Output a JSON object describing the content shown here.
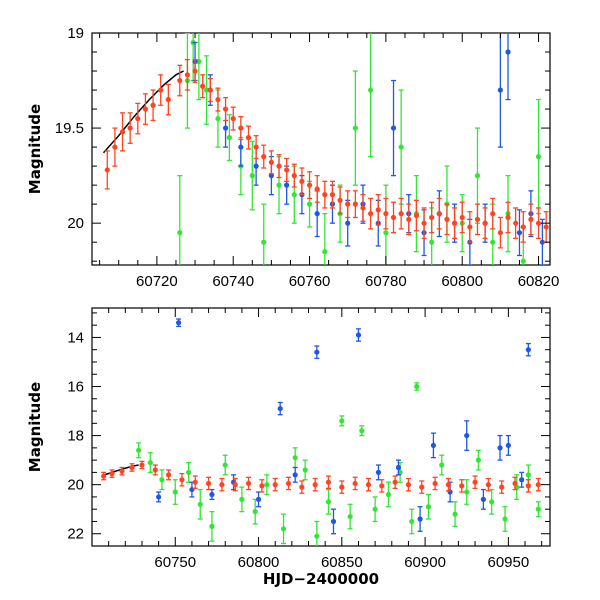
{
  "chart_data": [
    {
      "type": "scatter",
      "title": "",
      "xlabel": "",
      "ylabel": "Magnitude",
      "xlim": [
        60703,
        60823
      ],
      "ylim": [
        20.22,
        19.0
      ],
      "y_inverted": true,
      "xticks": [
        60720,
        60740,
        60760,
        60780,
        60800,
        60820
      ],
      "yticks": [
        19,
        19.5,
        20
      ],
      "x_minor_step": 5,
      "y_minor_step": 0.1,
      "grid": false,
      "model_curve": {
        "name": "model",
        "color": "#000000",
        "x": [
          60706,
          60710,
          60714,
          60718,
          60722,
          60725,
          60727
        ],
        "y": [
          19.63,
          19.54,
          19.44,
          19.35,
          19.27,
          19.22,
          19.2
        ]
      },
      "series": [
        {
          "name": "green",
          "color": "#33e633",
          "x": [
            60726,
            60728,
            60729.5,
            60731,
            60733,
            60736,
            60739,
            60742,
            60745,
            60748,
            60752,
            60756,
            60760,
            60764,
            60768,
            60772,
            60776,
            60780,
            60784,
            60788,
            60792,
            60796,
            60800,
            60804,
            60808,
            60812,
            60816,
            60820
          ],
          "y": [
            20.05,
            19.25,
            19.05,
            19.15,
            19.3,
            19.45,
            19.55,
            19.7,
            19.75,
            20.1,
            19.8,
            19.85,
            19.9,
            20.15,
            19.95,
            19.5,
            19.3,
            20.05,
            19.6,
            19.95,
            20.1,
            19.9,
            20.0,
            19.75,
            20.1,
            19.95,
            20.2,
            19.65
          ],
          "yerr": [
            0.3,
            0.25,
            0.2,
            0.2,
            0.18,
            0.15,
            0.12,
            0.15,
            0.18,
            0.2,
            0.15,
            0.15,
            0.12,
            0.2,
            0.15,
            0.3,
            0.35,
            0.25,
            0.3,
            0.2,
            0.18,
            0.2,
            0.15,
            0.25,
            0.2,
            0.2,
            0.18,
            0.3
          ]
        },
        {
          "name": "blue",
          "color": "#1f57e6",
          "x": [
            60730,
            60734,
            60738,
            60742,
            60746,
            60750,
            60754,
            60758,
            60762,
            60766,
            60770,
            60774,
            60778,
            60782,
            60786,
            60790,
            60794,
            60798,
            60802,
            60806,
            60810,
            60812,
            60815,
            60818,
            60821
          ],
          "y": [
            19.15,
            19.3,
            19.5,
            19.6,
            19.7,
            19.75,
            19.8,
            19.85,
            19.95,
            19.9,
            20.0,
            19.9,
            20.0,
            19.5,
            19.95,
            20.05,
            19.95,
            20.0,
            20.1,
            20.0,
            19.3,
            19.1,
            20.05,
            19.95,
            20.1
          ],
          "yerr": [
            0.1,
            0.08,
            0.1,
            0.1,
            0.1,
            0.1,
            0.1,
            0.1,
            0.12,
            0.1,
            0.12,
            0.1,
            0.12,
            0.25,
            0.1,
            0.12,
            0.12,
            0.1,
            0.12,
            0.1,
            0.3,
            0.25,
            0.12,
            0.12,
            0.12
          ]
        },
        {
          "name": "red",
          "color": "#ff4422",
          "x": [
            60707,
            60709,
            60711,
            60713,
            60715,
            60717,
            60719,
            60721,
            60723,
            60726,
            60728,
            60730,
            60732,
            60734,
            60736,
            60738,
            60740,
            60742,
            60744,
            60746,
            60748,
            60750,
            60752,
            60754,
            60756,
            60758,
            60760,
            60762,
            60764,
            60766,
            60768,
            60770,
            60772,
            60774,
            60776,
            60778,
            60780,
            60782,
            60784,
            60786,
            60788,
            60790,
            60792,
            60794,
            60796,
            60798,
            60800,
            60802,
            60804,
            60806,
            60808,
            60810,
            60812,
            60814,
            60816,
            60818,
            60820,
            60822
          ],
          "y": [
            19.72,
            19.6,
            19.52,
            19.5,
            19.45,
            19.4,
            19.38,
            19.3,
            19.35,
            19.25,
            19.22,
            19.2,
            19.28,
            19.3,
            19.35,
            19.4,
            19.45,
            19.5,
            19.55,
            19.6,
            19.65,
            19.68,
            19.7,
            19.72,
            19.75,
            19.78,
            19.8,
            19.82,
            19.85,
            19.85,
            19.88,
            19.9,
            19.9,
            19.92,
            19.95,
            19.93,
            19.95,
            19.97,
            19.95,
            19.98,
            19.96,
            20.0,
            19.97,
            19.95,
            19.98,
            20.0,
            19.97,
            20.02,
            19.98,
            20.0,
            19.95,
            20.05,
            19.97,
            20.0,
            20.02,
            19.98,
            20.0,
            20.02
          ],
          "yerr": [
            0.1,
            0.1,
            0.1,
            0.08,
            0.08,
            0.08,
            0.08,
            0.08,
            0.08,
            0.08,
            0.08,
            0.06,
            0.06,
            0.06,
            0.06,
            0.06,
            0.06,
            0.06,
            0.06,
            0.06,
            0.06,
            0.06,
            0.06,
            0.06,
            0.06,
            0.07,
            0.07,
            0.07,
            0.07,
            0.07,
            0.07,
            0.07,
            0.07,
            0.07,
            0.08,
            0.08,
            0.08,
            0.08,
            0.08,
            0.08,
            0.08,
            0.08,
            0.08,
            0.08,
            0.08,
            0.08,
            0.08,
            0.08,
            0.08,
            0.08,
            0.08,
            0.08,
            0.08,
            0.08,
            0.08,
            0.08,
            0.08,
            0.08
          ]
        }
      ]
    },
    {
      "type": "scatter",
      "title": "",
      "xlabel": "HJD−2400000",
      "ylabel": "Magnitude",
      "xlim": [
        60700,
        60975
      ],
      "ylim": [
        22.5,
        12.8
      ],
      "y_inverted": true,
      "xticks": [
        60750,
        60800,
        60850,
        60900,
        60950
      ],
      "yticks": [
        14,
        16,
        18,
        20,
        22
      ],
      "x_minor_step": 10,
      "y_minor_step": 0.5,
      "grid": false,
      "model_curve": {
        "name": "model",
        "color": "#000000",
        "x": [
          60706,
          60712,
          60718,
          60724,
          60728
        ],
        "y": [
          19.63,
          19.5,
          19.37,
          19.25,
          19.2
        ]
      },
      "series": [
        {
          "name": "green",
          "color": "#33e633",
          "x": [
            60728,
            60735,
            60742,
            60750,
            60758,
            60765,
            60772,
            60780,
            60790,
            60798,
            60805,
            60815,
            60822,
            60828,
            60835,
            60842,
            60850,
            60855,
            60862,
            60870,
            60878,
            60885,
            60892,
            60895,
            60902,
            60910,
            60918,
            60925,
            60932,
            60940,
            60948,
            60955,
            60962,
            60968
          ],
          "y": [
            18.6,
            19.1,
            19.8,
            20.3,
            19.5,
            20.8,
            21.7,
            19.2,
            20.6,
            21.1,
            20.0,
            21.8,
            18.9,
            19.4,
            22.1,
            20.7,
            17.4,
            21.3,
            17.8,
            21.0,
            20.4,
            19.5,
            21.5,
            16.0,
            20.9,
            19.2,
            21.2,
            20.3,
            19.0,
            20.7,
            21.4,
            20.1,
            19.6,
            21.0
          ],
          "yerr": [
            0.3,
            0.4,
            0.4,
            0.5,
            0.4,
            0.6,
            0.6,
            0.4,
            0.5,
            0.5,
            0.4,
            0.6,
            0.4,
            0.4,
            0.6,
            0.5,
            0.2,
            0.5,
            0.2,
            0.5,
            0.5,
            0.4,
            0.5,
            0.15,
            0.5,
            0.4,
            0.5,
            0.5,
            0.4,
            0.5,
            0.5,
            0.5,
            0.4,
            0.3
          ]
        },
        {
          "name": "blue",
          "color": "#1f57e6",
          "x": [
            60740,
            60752,
            60760,
            60772,
            60785,
            60800,
            60813,
            60822,
            60835,
            60845,
            60860,
            60872,
            60884,
            60897,
            60905,
            60915,
            60925,
            60935,
            60945,
            60950,
            60958,
            60962
          ],
          "y": [
            20.5,
            13.4,
            20.2,
            20.4,
            19.9,
            20.6,
            16.9,
            19.6,
            14.6,
            21.5,
            13.9,
            19.5,
            19.3,
            21.4,
            18.4,
            20.3,
            18.0,
            20.6,
            18.5,
            18.4,
            19.8,
            14.5
          ],
          "yerr": [
            0.2,
            0.15,
            0.3,
            0.2,
            0.3,
            0.3,
            0.25,
            0.3,
            0.25,
            0.5,
            0.25,
            0.3,
            0.3,
            0.5,
            0.5,
            0.4,
            0.6,
            0.4,
            0.5,
            0.4,
            0.3,
            0.25
          ]
        },
        {
          "name": "red",
          "color": "#ff4422",
          "x": [
            60707,
            60712,
            60718,
            60724,
            60730,
            60738,
            60746,
            60754,
            60762,
            60770,
            60778,
            60786,
            60794,
            60802,
            60810,
            60818,
            60826,
            60834,
            60842,
            60850,
            60858,
            60866,
            60874,
            60882,
            60890,
            60898,
            60906,
            60914,
            60922,
            60930,
            60938,
            60946,
            60954,
            60962,
            60968
          ],
          "y": [
            19.65,
            19.55,
            19.45,
            19.3,
            19.2,
            19.4,
            19.6,
            19.8,
            19.9,
            19.95,
            20.0,
            20.0,
            19.95,
            20.05,
            20.0,
            19.95,
            20.1,
            20.0,
            19.9,
            20.1,
            19.95,
            20.0,
            20.05,
            19.9,
            20.0,
            20.1,
            19.95,
            20.0,
            20.05,
            19.9,
            20.0,
            20.1,
            19.95,
            20.05,
            20.0
          ],
          "yerr": [
            0.15,
            0.15,
            0.15,
            0.15,
            0.15,
            0.2,
            0.2,
            0.25,
            0.25,
            0.25,
            0.25,
            0.25,
            0.25,
            0.25,
            0.25,
            0.25,
            0.25,
            0.25,
            0.25,
            0.25,
            0.25,
            0.25,
            0.25,
            0.25,
            0.25,
            0.25,
            0.25,
            0.25,
            0.25,
            0.25,
            0.25,
            0.25,
            0.25,
            0.25,
            0.25
          ]
        }
      ]
    }
  ]
}
